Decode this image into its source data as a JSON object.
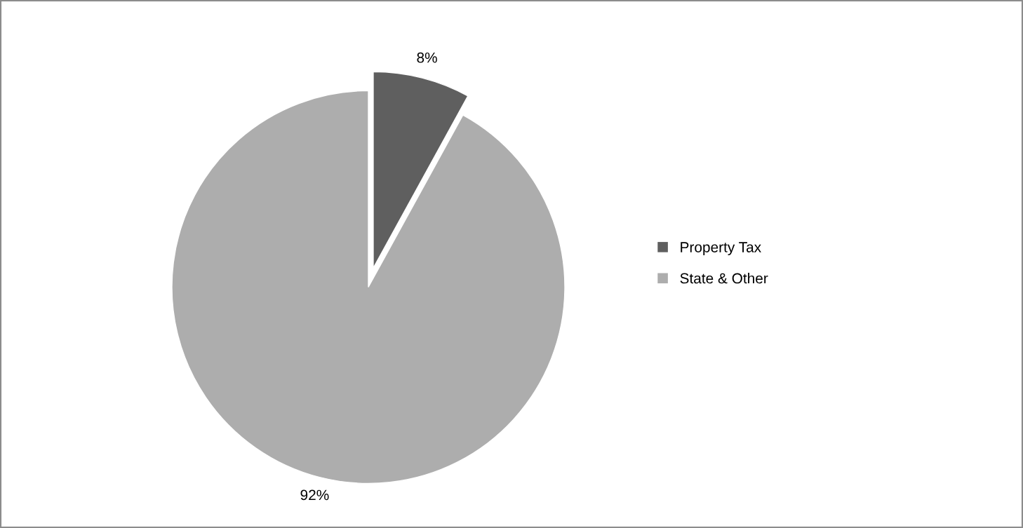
{
  "chart_data": {
    "type": "pie",
    "categories": [
      "Property Tax",
      "State & Other"
    ],
    "values": [
      8,
      92
    ],
    "colors": [
      "#5f5f5f",
      "#adadad"
    ],
    "value_labels": [
      "8%",
      "92%"
    ],
    "legend": "right"
  }
}
